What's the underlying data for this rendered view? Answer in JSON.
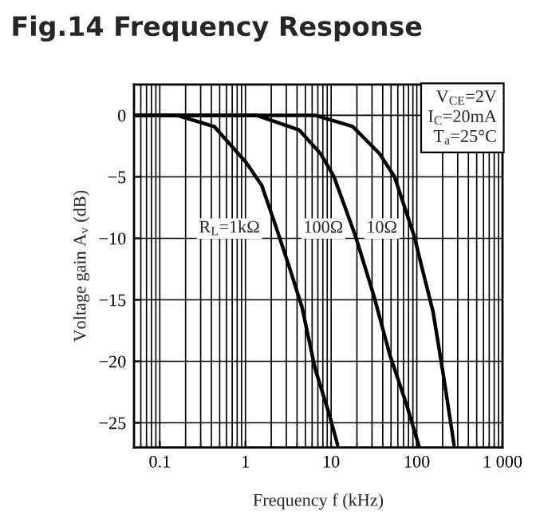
{
  "chart_data": {
    "type": "line",
    "title": "Fig.14 Frequency Response",
    "xlabel": "Frequency f (kHz)",
    "ylabel": "Voltage gain A$_{v}$ (dB)",
    "log": "x",
    "grid": true,
    "legend": false,
    "marker": "none",
    "line_style": "solid",
    "xlim": [
      0.05,
      1000
    ],
    "xticks": [
      0.1,
      1,
      10,
      100,
      {
        "value": 1000,
        "label": "1 000"
      }
    ],
    "ylim": [
      -27,
      2.5
    ],
    "yticks": [
      0,
      -5,
      -10,
      -15,
      -20,
      -25
    ],
    "series": [
      {
        "color": "#000000",
        "x": [
          0.05,
          0.157,
          0.43,
          1.01,
          1.55,
          2.23,
          3.2,
          4.57,
          6.5,
          9.4,
          11.9
        ],
        "values": [
          0,
          0,
          -0.9,
          -3.8,
          -5.7,
          -8.9,
          -12.2,
          -15.6,
          -20.6,
          -24.2,
          -26.8
        ]
      },
      {
        "color": "#000000",
        "x": [
          0.05,
          1.35,
          4.25,
          7.5,
          10.8,
          19.2,
          31.6,
          48.5,
          75,
          107
        ],
        "values": [
          0,
          0,
          -1.2,
          -3.1,
          -5.0,
          -9.8,
          -14.7,
          -19.5,
          -23.4,
          -27
        ]
      },
      {
        "color": "#000000",
        "x": [
          0.05,
          6.5,
          17.8,
          36.6,
          55,
          93,
          115,
          155,
          205,
          272
        ],
        "values": [
          0,
          0,
          -0.9,
          -3.1,
          -5.0,
          -9.8,
          -12.4,
          -16,
          -21.2,
          -26.8
        ]
      }
    ],
    "annotations": [
      "V$_{CE}$=2V\nI$_{C}$=20mA\nT$_{a}$=25°C",
      {
        "text": "R$_{L}$=1kΩ",
        "x": 0.65,
        "y": -9.2
      },
      {
        "text": "100Ω",
        "x": 8.1,
        "y": -9.2
      },
      {
        "text": "10Ω",
        "x": 39,
        "y": -9.2
      }
    ]
  }
}
